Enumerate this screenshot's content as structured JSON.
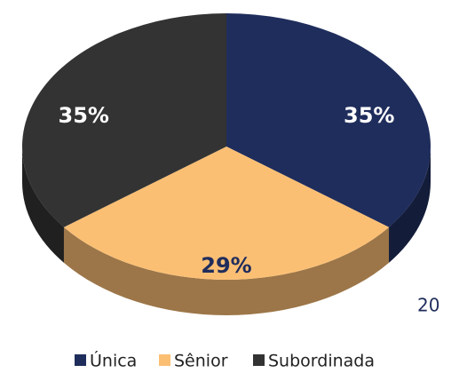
{
  "chart_data": {
    "type": "pie",
    "categories": [
      "Única",
      "Sênior",
      "Subordinada"
    ],
    "values": [
      35,
      29,
      35
    ],
    "value_labels": [
      "35%",
      "29%",
      "35%"
    ],
    "colors": [
      "#1f2d5c",
      "#fbbf74",
      "#333333"
    ],
    "label_colors": [
      "#ffffff",
      "#1f2d5c",
      "#ffffff"
    ],
    "legend": "bottom"
  },
  "page_number": "20"
}
